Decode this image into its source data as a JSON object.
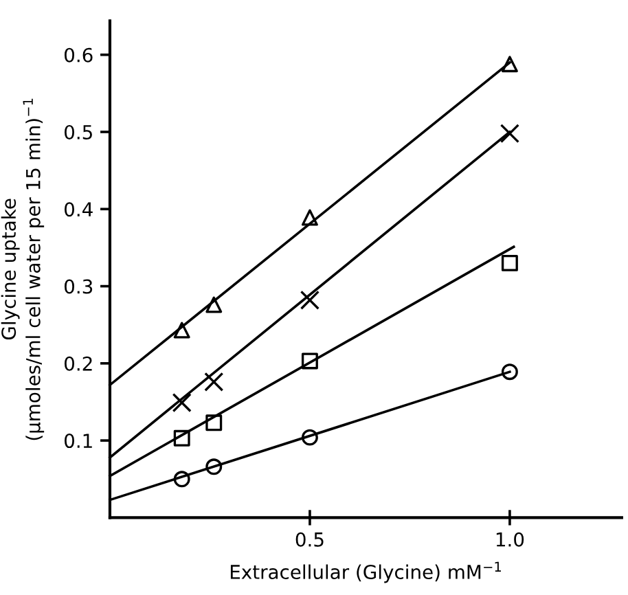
{
  "chart_data": {
    "type": "scatter",
    "xlabel": "Extracellular (Glycine) mM$^{−1}$",
    "ylabel": "Glycine uptake\n(μmoles/ml cell water per 15 min)$^{−1}$",
    "xlim": [
      0,
      1.28
    ],
    "ylim": [
      0,
      0.644
    ],
    "xticks": [
      0.5,
      {
        "value": 1.0,
        "label": "1.0"
      }
    ],
    "yticks": [
      0.1,
      0.2,
      0.3,
      0.4,
      0.5,
      0.6
    ],
    "grid": false,
    "legend": false,
    "series": [
      {
        "marker": "triangle",
        "color": "#000000",
        "x": [
          0.18,
          0.26,
          0.5,
          1.0
        ],
        "values": [
          0.243,
          0.276,
          0.389,
          0.588
        ]
      },
      {
        "marker": "cross",
        "color": "#000000",
        "x": [
          0.18,
          0.26,
          0.5,
          1.0
        ],
        "values": [
          0.149,
          0.176,
          0.282,
          0.498
        ]
      },
      {
        "marker": "square",
        "color": "#000000",
        "x": [
          0.18,
          0.26,
          0.5,
          1.0
        ],
        "values": [
          0.103,
          0.123,
          0.203,
          0.33
        ]
      },
      {
        "marker": "circle",
        "color": "#000000",
        "x": [
          0.18,
          0.26,
          0.5,
          1.0
        ],
        "values": [
          0.05,
          0.066,
          0.104,
          0.189
        ]
      },
      {
        "type": "line",
        "marker": "none",
        "line_style": "solid",
        "color": "#000000",
        "x": [
          0,
          1.0
        ],
        "values": [
          0.172,
          0.59
        ]
      },
      {
        "type": "line",
        "marker": "none",
        "line_style": "solid",
        "color": "#000000",
        "x": [
          0,
          1.0
        ],
        "values": [
          0.078,
          0.5
        ]
      },
      {
        "type": "line",
        "marker": "none",
        "line_style": "solid",
        "color": "#000000",
        "x": [
          0,
          1.01
        ],
        "values": [
          0.054,
          0.351
        ]
      },
      {
        "type": "line",
        "marker": "none",
        "line_style": "solid",
        "color": "#000000",
        "x": [
          0,
          1.0
        ],
        "values": [
          0.023,
          0.189
        ]
      }
    ]
  }
}
